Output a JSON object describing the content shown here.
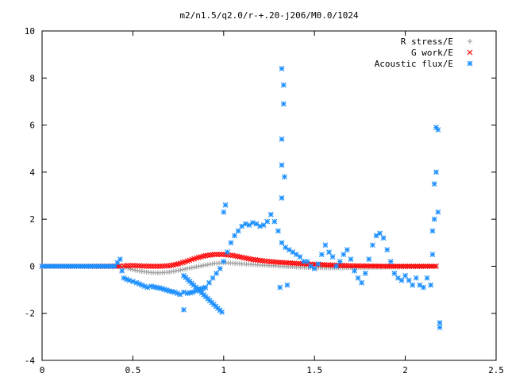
{
  "chart_data": {
    "type": "scatter",
    "title": "m2/n1.5/q2.0/r-+.20-j206/M0.0/1024",
    "xlabel": "",
    "ylabel": "",
    "xlim": [
      0,
      2.5
    ],
    "ylim": [
      -4,
      10
    ],
    "x_ticks": [
      "0",
      "0.5",
      "1",
      "1.5",
      "2",
      "2.5"
    ],
    "y_ticks": [
      "-4",
      "-2",
      "0",
      "2",
      "4",
      "6",
      "8",
      "10"
    ],
    "grid": false,
    "legend_position": "top-right",
    "series": [
      {
        "name": "R stress/E",
        "marker": "+",
        "color": "#a0a0a0",
        "points": [
          [
            0.0,
            0.0
          ],
          [
            0.2,
            0.0
          ],
          [
            0.43,
            0.0
          ],
          [
            0.46,
            -0.05
          ],
          [
            0.5,
            -0.15
          ],
          [
            0.55,
            -0.22
          ],
          [
            0.6,
            -0.27
          ],
          [
            0.65,
            -0.28
          ],
          [
            0.7,
            -0.25
          ],
          [
            0.75,
            -0.18
          ],
          [
            0.8,
            -0.1
          ],
          [
            0.85,
            -0.02
          ],
          [
            0.9,
            0.05
          ],
          [
            0.95,
            0.12
          ],
          [
            1.0,
            0.15
          ],
          [
            1.05,
            0.13
          ],
          [
            1.1,
            0.1
          ],
          [
            1.15,
            0.08
          ],
          [
            1.2,
            0.05
          ],
          [
            1.25,
            0.03
          ],
          [
            1.3,
            0.01
          ],
          [
            1.4,
            -0.03
          ],
          [
            1.5,
            -0.06
          ],
          [
            1.6,
            -0.07
          ],
          [
            1.7,
            -0.06
          ],
          [
            1.8,
            -0.05
          ],
          [
            1.9,
            -0.04
          ],
          [
            2.0,
            -0.03
          ],
          [
            2.1,
            -0.02
          ],
          [
            2.17,
            0.0
          ]
        ]
      },
      {
        "name": "G work/E",
        "marker": "x",
        "color": "#ff0000",
        "points": [
          [
            0.0,
            0.0
          ],
          [
            0.2,
            0.0
          ],
          [
            0.43,
            0.0
          ],
          [
            0.45,
            0.02
          ],
          [
            0.5,
            0.03
          ],
          [
            0.55,
            0.01
          ],
          [
            0.6,
            0.0
          ],
          [
            0.65,
            0.0
          ],
          [
            0.7,
            0.02
          ],
          [
            0.75,
            0.1
          ],
          [
            0.8,
            0.22
          ],
          [
            0.85,
            0.35
          ],
          [
            0.9,
            0.45
          ],
          [
            0.95,
            0.5
          ],
          [
            1.0,
            0.5
          ],
          [
            1.05,
            0.46
          ],
          [
            1.1,
            0.38
          ],
          [
            1.15,
            0.3
          ],
          [
            1.2,
            0.25
          ],
          [
            1.25,
            0.2
          ],
          [
            1.3,
            0.17
          ],
          [
            1.4,
            0.12
          ],
          [
            1.5,
            0.08
          ],
          [
            1.6,
            0.05
          ],
          [
            1.7,
            0.02
          ],
          [
            1.8,
            0.01
          ],
          [
            1.9,
            0.0
          ],
          [
            2.0,
            0.0
          ],
          [
            2.1,
            0.0
          ],
          [
            2.17,
            0.0
          ]
        ]
      },
      {
        "name": "Acoustic flux/E",
        "marker": "*",
        "color": "#1e90ff",
        "points": [
          [
            0.0,
            0.0
          ],
          [
            0.1,
            0.0
          ],
          [
            0.2,
            0.0
          ],
          [
            0.3,
            0.0
          ],
          [
            0.4,
            0.0
          ],
          [
            0.43,
            0.3
          ],
          [
            0.44,
            -0.2
          ],
          [
            0.45,
            -0.5
          ],
          [
            0.48,
            -0.6
          ],
          [
            0.5,
            -0.65
          ],
          [
            0.52,
            -0.7
          ],
          [
            0.55,
            -0.8
          ],
          [
            0.58,
            -0.9
          ],
          [
            0.6,
            -0.85
          ],
          [
            0.63,
            -0.9
          ],
          [
            0.66,
            -0.95
          ],
          [
            0.7,
            -1.05
          ],
          [
            0.73,
            -1.1
          ],
          [
            0.76,
            -1.2
          ],
          [
            0.78,
            -1.1
          ],
          [
            0.8,
            -1.15
          ],
          [
            0.83,
            -1.1
          ],
          [
            0.86,
            -1.0
          ],
          [
            0.9,
            -0.9
          ],
          [
            0.92,
            -0.7
          ],
          [
            0.94,
            -0.5
          ],
          [
            0.96,
            -0.3
          ],
          [
            0.98,
            -0.1
          ],
          [
            1.0,
            0.2
          ],
          [
            1.02,
            0.6
          ],
          [
            1.04,
            1.0
          ],
          [
            1.06,
            1.3
          ],
          [
            1.08,
            1.5
          ],
          [
            1.1,
            1.7
          ],
          [
            1.12,
            1.8
          ],
          [
            1.14,
            1.75
          ],
          [
            1.16,
            1.85
          ],
          [
            1.18,
            1.8
          ],
          [
            1.2,
            1.7
          ],
          [
            1.22,
            1.75
          ],
          [
            1.24,
            1.9
          ],
          [
            1.26,
            2.2
          ],
          [
            1.28,
            1.9
          ],
          [
            1.3,
            1.5
          ],
          [
            1.32,
            1.0
          ],
          [
            1.34,
            0.8
          ],
          [
            1.36,
            0.7
          ],
          [
            1.38,
            0.6
          ],
          [
            1.4,
            0.5
          ],
          [
            1.42,
            0.4
          ],
          [
            1.44,
            0.2
          ],
          [
            1.46,
            0.2
          ],
          [
            1.48,
            0.0
          ],
          [
            1.5,
            -0.1
          ],
          [
            1.52,
            0.1
          ],
          [
            1.54,
            0.5
          ],
          [
            1.56,
            0.9
          ],
          [
            1.58,
            0.6
          ],
          [
            1.6,
            0.4
          ],
          [
            1.62,
            0.0
          ],
          [
            1.64,
            0.2
          ],
          [
            1.66,
            0.5
          ],
          [
            1.68,
            0.7
          ],
          [
            1.7,
            0.3
          ],
          [
            1.72,
            -0.2
          ],
          [
            1.74,
            -0.5
          ],
          [
            1.76,
            -0.7
          ],
          [
            1.78,
            -0.3
          ],
          [
            1.8,
            0.3
          ],
          [
            1.82,
            0.9
          ],
          [
            1.84,
            1.3
          ],
          [
            1.86,
            1.4
          ],
          [
            1.88,
            1.2
          ],
          [
            1.9,
            0.7
          ],
          [
            1.92,
            0.2
          ],
          [
            1.94,
            -0.3
          ],
          [
            1.96,
            -0.5
          ],
          [
            1.98,
            -0.6
          ],
          [
            2.0,
            -0.4
          ],
          [
            2.02,
            -0.6
          ],
          [
            2.04,
            -0.8
          ],
          [
            2.06,
            -0.5
          ],
          [
            2.08,
            -0.8
          ],
          [
            2.1,
            -0.9
          ],
          [
            2.12,
            -0.5
          ],
          [
            2.14,
            -0.8
          ],
          [
            2.15,
            0.5
          ],
          [
            2.16,
            2.0
          ],
          [
            2.17,
            4.0
          ],
          [
            2.18,
            5.8
          ],
          [
            2.19,
            -2.4
          ],
          [
            2.19,
            -2.6
          ],
          [
            0.78,
            -1.85
          ],
          [
            0.78,
            -0.4
          ],
          [
            0.99,
            -1.95
          ],
          [
            1.0,
            2.3
          ],
          [
            1.01,
            2.6
          ],
          [
            1.31,
            -0.9
          ],
          [
            1.32,
            2.9
          ],
          [
            1.32,
            4.3
          ],
          [
            1.32,
            5.4
          ],
          [
            1.33,
            6.9
          ],
          [
            1.33,
            7.7
          ],
          [
            1.32,
            8.4
          ],
          [
            1.35,
            -0.8
          ],
          [
            2.17,
            5.9
          ],
          [
            2.16,
            3.5
          ],
          [
            2.18,
            2.3
          ],
          [
            2.15,
            1.5
          ]
        ]
      }
    ]
  }
}
